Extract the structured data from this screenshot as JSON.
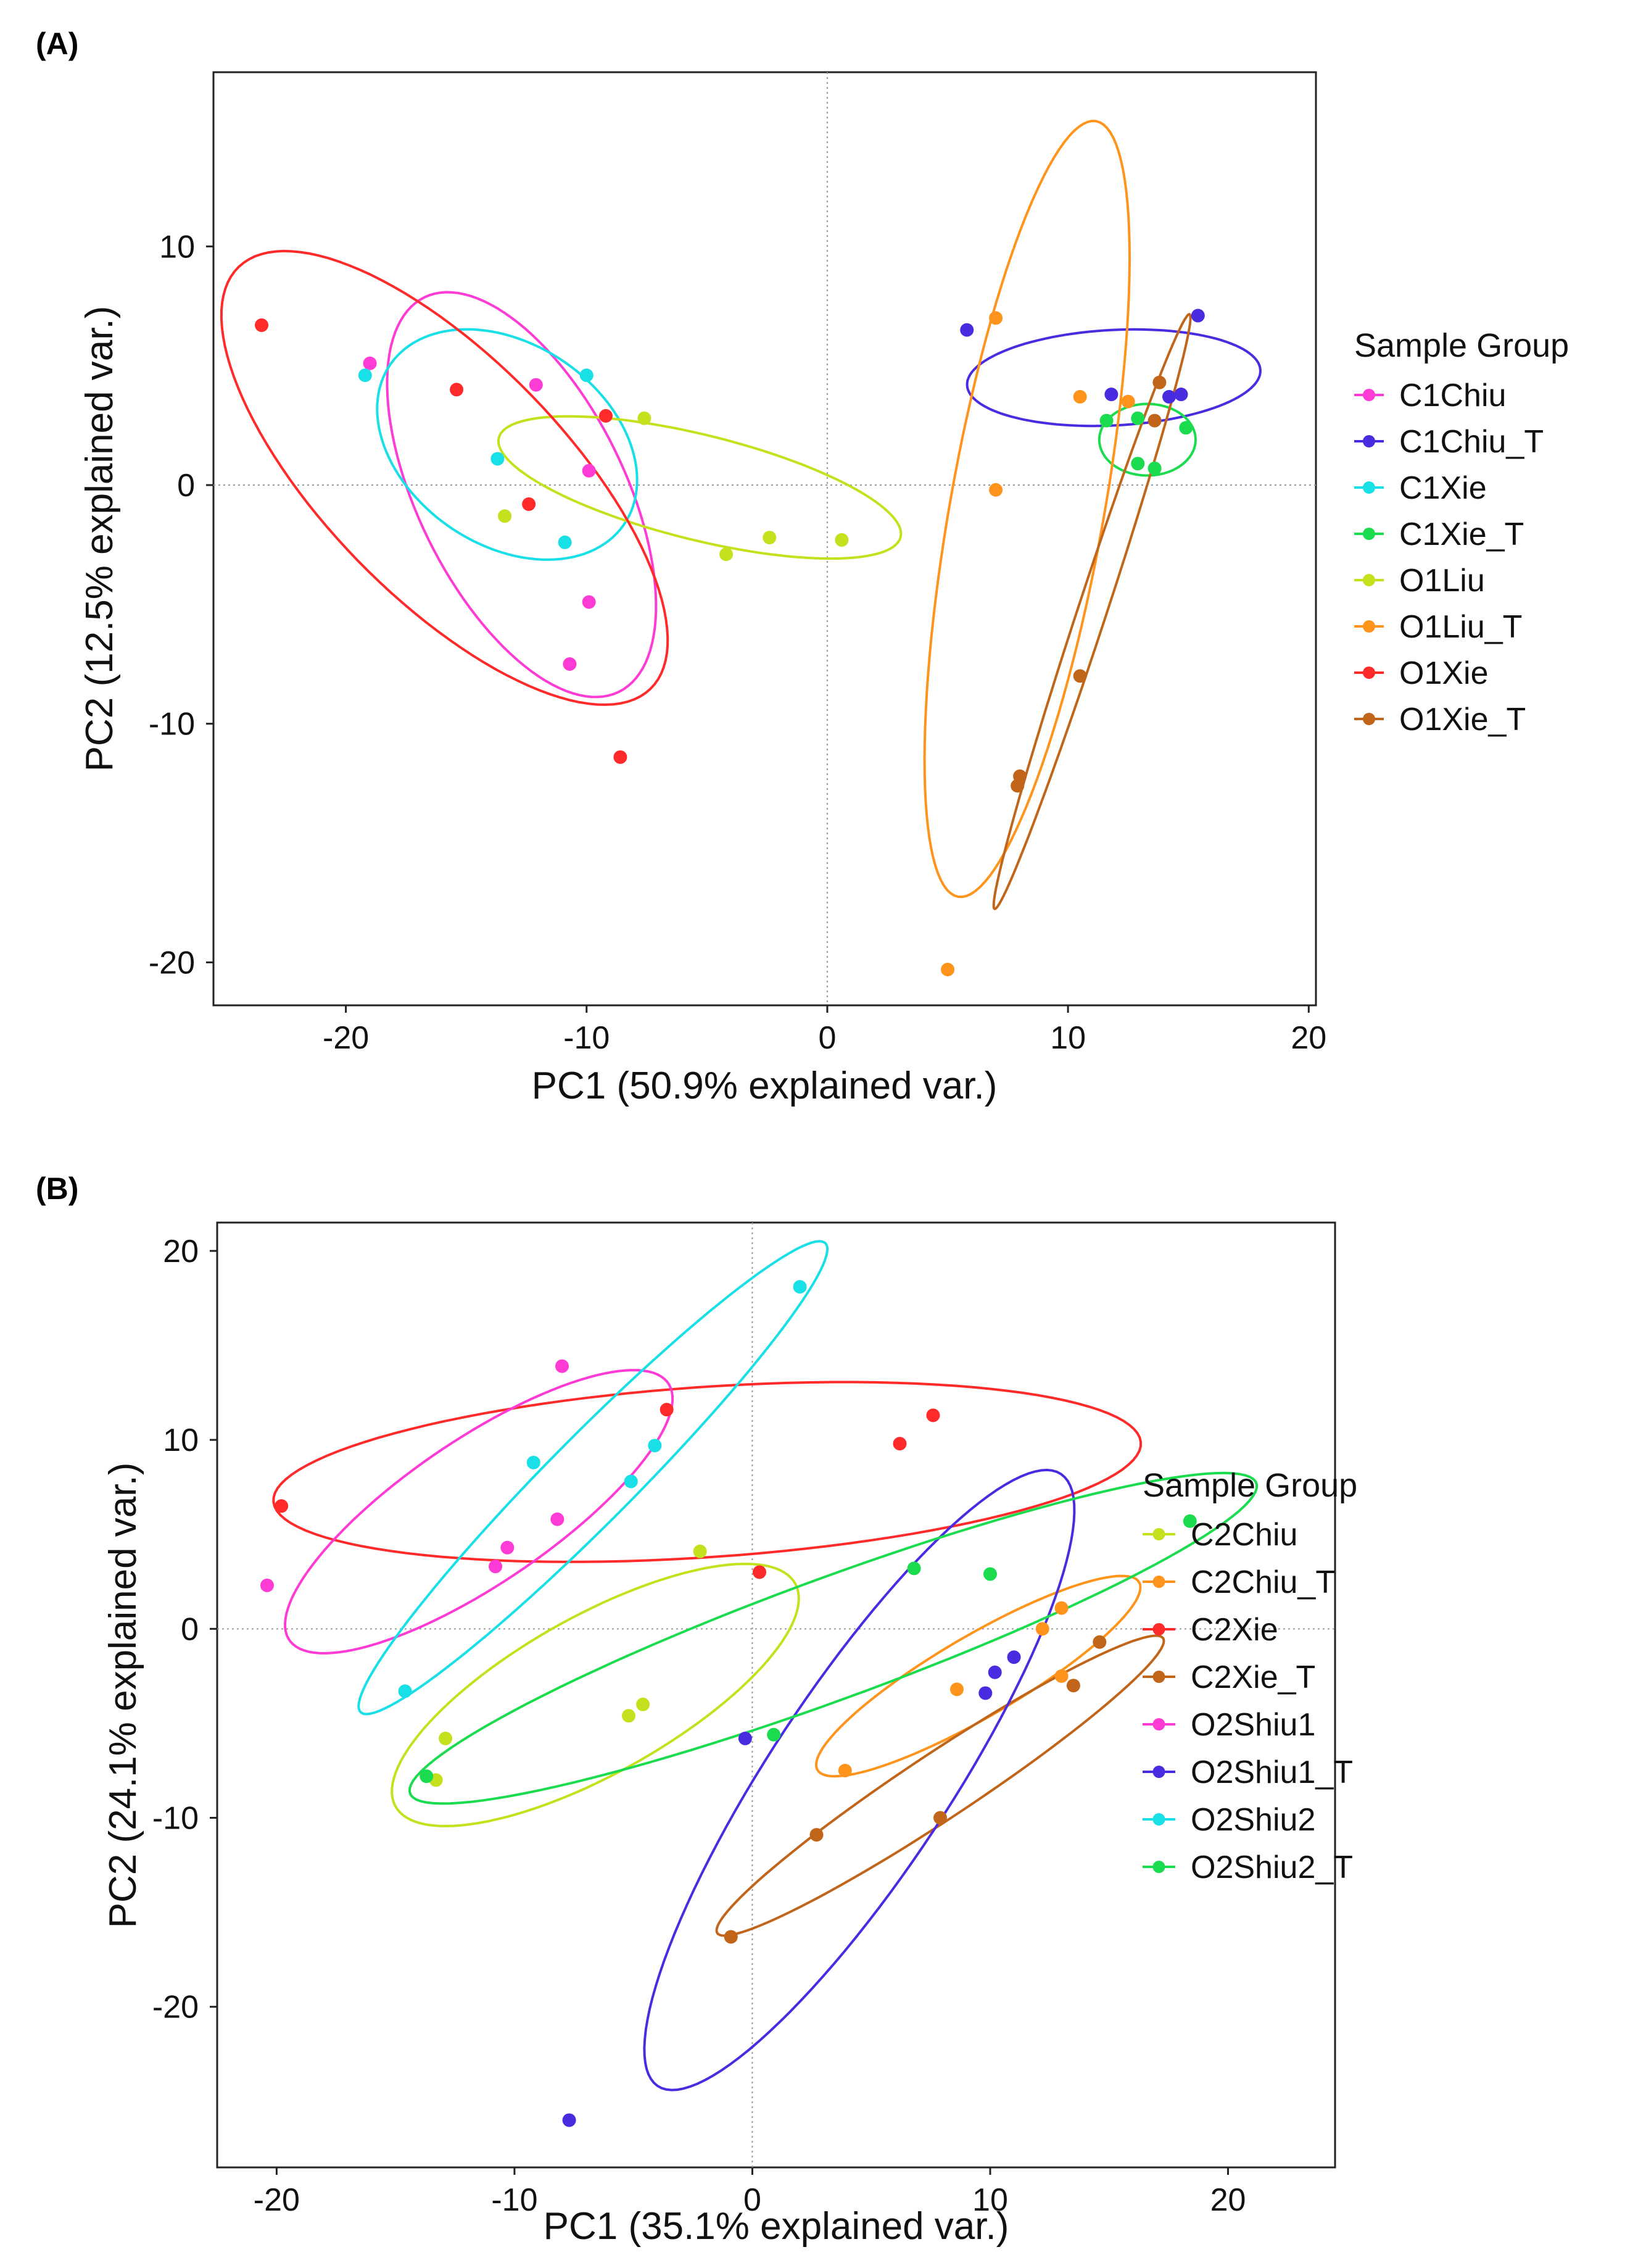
{
  "chart_data": [
    {
      "panel_label": "(A)",
      "type": "scatter",
      "xlabel": "PC1 (50.9% explained var.)",
      "ylabel": "PC2 (12.5% explained var.)",
      "xlim": [
        -25.5,
        20.3
      ],
      "ylim": [
        -21.8,
        17.3
      ],
      "xticks": [
        -20,
        -10,
        0,
        10,
        20
      ],
      "yticks": [
        10,
        0,
        -10,
        -20
      ],
      "x_tick_labels": [
        "-20",
        "-10",
        "0",
        "10",
        "20"
      ],
      "y_tick_labels": [
        "10",
        "0",
        "-10",
        "-20"
      ],
      "reference_lines": {
        "x": 0,
        "y": 0,
        "style": "dotted"
      },
      "grid": false,
      "legend": {
        "title": "Sample Group",
        "placement": "right"
      },
      "series": [
        {
          "name": "C1Chiu",
          "color": "#ff3bd6",
          "points": [
            [
              -19.0,
              5.1
            ],
            [
              -12.1,
              4.2
            ],
            [
              -9.9,
              0.6
            ],
            [
              -9.9,
              -4.9
            ],
            [
              -10.7,
              -7.5
            ]
          ],
          "ellipse": {
            "center": [
              -12.7,
              -0.4
            ],
            "semi_major": 9.2,
            "semi_minor": 4.3,
            "angle": -64
          }
        },
        {
          "name": "C1Chiu_T",
          "color": "#4a2ce0",
          "points": [
            [
              5.8,
              6.5
            ],
            [
              11.8,
              3.8
            ],
            [
              14.2,
              3.7
            ],
            [
              14.7,
              3.8
            ],
            [
              15.4,
              7.1
            ]
          ],
          "ellipse": {
            "center": [
              11.9,
              4.5
            ],
            "semi_major": 6.1,
            "semi_minor": 2.0,
            "angle": 3
          }
        },
        {
          "name": "C1Xie",
          "color": "#18e0e6",
          "points": [
            [
              -19.2,
              4.6
            ],
            [
              -10.0,
              4.6
            ],
            [
              -13.7,
              1.1
            ],
            [
              -10.9,
              -2.4
            ]
          ],
          "ellipse": {
            "center": [
              -13.3,
              1.7
            ],
            "semi_major": 5.9,
            "semi_minor": 4.2,
            "angle": -35
          }
        },
        {
          "name": "C1Xie_T",
          "color": "#1bdc4f",
          "points": [
            [
              11.6,
              2.7
            ],
            [
              12.9,
              2.8
            ],
            [
              14.9,
              2.4
            ],
            [
              12.9,
              0.9
            ],
            [
              13.6,
              0.7
            ]
          ],
          "ellipse": {
            "center": [
              13.3,
              1.9
            ],
            "semi_major": 2.0,
            "semi_minor": 1.5,
            "angle": 0
          }
        },
        {
          "name": "O1Liu",
          "color": "#c5e01c",
          "points": [
            [
              -7.6,
              2.8
            ],
            [
              -13.4,
              -1.3
            ],
            [
              -4.2,
              -2.9
            ],
            [
              -2.4,
              -2.2
            ],
            [
              0.6,
              -2.3
            ]
          ],
          "ellipse": {
            "center": [
              -5.3,
              -0.1
            ],
            "semi_major": 8.6,
            "semi_minor": 2.2,
            "angle": -14
          }
        },
        {
          "name": "O1Liu_T",
          "color": "#ff941c",
          "points": [
            [
              7.0,
              7.0
            ],
            [
              10.5,
              3.7
            ],
            [
              12.5,
              3.5
            ],
            [
              7.0,
              -0.2
            ],
            [
              5.0,
              -20.3
            ]
          ],
          "ellipse": {
            "center": [
              8.3,
              -1.0
            ],
            "semi_major": 16.5,
            "semi_minor": 3.2,
            "angle": 80
          }
        },
        {
          "name": "O1Xie",
          "color": "#ff2a2a",
          "points": [
            [
              -23.5,
              6.7
            ],
            [
              -15.4,
              4.0
            ],
            [
              -9.2,
              2.9
            ],
            [
              -12.4,
              -0.8
            ],
            [
              -8.6,
              -11.4
            ]
          ],
          "ellipse": {
            "center": [
              -15.9,
              0.3
            ],
            "semi_major": 12.3,
            "semi_minor": 5.0,
            "angle": -46
          }
        },
        {
          "name": "O1Xie_T",
          "color": "#c0651a",
          "points": [
            [
              13.8,
              4.3
            ],
            [
              13.6,
              2.7
            ],
            [
              10.5,
              -8.0
            ],
            [
              8.0,
              -12.2
            ],
            [
              7.9,
              -12.6
            ]
          ],
          "ellipse": {
            "center": [
              11.0,
              -5.3
            ],
            "semi_major": 13.1,
            "semi_minor": 0.6,
            "angle": 72
          }
        }
      ]
    },
    {
      "panel_label": "(B)",
      "type": "scatter",
      "xlabel": "PC1 (35.1% explained var.)",
      "ylabel": "PC2 (24.1% explained var.)",
      "xlim": [
        -22.5,
        24.5
      ],
      "ylim": [
        -28.5,
        21.5
      ],
      "xticks": [
        -20,
        -10,
        0,
        10,
        20
      ],
      "yticks": [
        20,
        10,
        0,
        -10,
        -20
      ],
      "x_tick_labels": [
        "-20",
        "-10",
        "0",
        "10",
        "20"
      ],
      "y_tick_labels": [
        "20",
        "10",
        "0",
        "-10",
        "-20"
      ],
      "reference_lines": {
        "x": 0,
        "y": 0,
        "style": "dotted"
      },
      "grid": false,
      "legend": {
        "title": "Sample Group",
        "placement": "right"
      },
      "series": [
        {
          "name": "C2Chiu",
          "color": "#c5e01c",
          "points": [
            [
              -2.2,
              4.1
            ],
            [
              -4.6,
              -4.0
            ],
            [
              -5.2,
              -4.6
            ],
            [
              -12.9,
              -5.8
            ],
            [
              -13.3,
              -8.0
            ]
          ],
          "ellipse": {
            "center": [
              -6.6,
              -3.5
            ],
            "semi_major": 10.3,
            "semi_minor": 3.9,
            "angle": 37
          }
        },
        {
          "name": "C2Chiu_T",
          "color": "#ff941c",
          "points": [
            [
              13.0,
              1.1
            ],
            [
              12.2,
              0.0
            ],
            [
              8.6,
              -3.2
            ],
            [
              13.0,
              -2.5
            ],
            [
              3.9,
              -7.5
            ]
          ],
          "ellipse": {
            "center": [
              9.5,
              -2.5
            ],
            "semi_major": 8.4,
            "semi_minor": 2.0,
            "angle": 37
          }
        },
        {
          "name": "C2Xie",
          "color": "#ff2a2a",
          "points": [
            [
              -19.8,
              6.5
            ],
            [
              -3.6,
              11.6
            ],
            [
              6.2,
              9.8
            ],
            [
              7.6,
              11.3
            ],
            [
              0.3,
              3.0
            ]
          ],
          "ellipse": {
            "center": [
              -1.9,
              8.3
            ],
            "semi_major": 18.3,
            "semi_minor": 4.5,
            "angle": 5
          }
        },
        {
          "name": "C2Xie_T",
          "color": "#c0651a",
          "points": [
            [
              14.6,
              -0.7
            ],
            [
              13.5,
              -3.0
            ],
            [
              7.9,
              -10.0
            ],
            [
              2.7,
              -10.9
            ],
            [
              -0.9,
              -16.3
            ]
          ],
          "ellipse": {
            "center": [
              7.9,
              -8.3
            ],
            "semi_major": 12.2,
            "semi_minor": 1.6,
            "angle": 40
          }
        },
        {
          "name": "O2Shiu1",
          "color": "#ff3bd6",
          "points": [
            [
              -8.0,
              13.9
            ],
            [
              -8.2,
              5.8
            ],
            [
              -10.3,
              4.3
            ],
            [
              -10.8,
              3.3
            ],
            [
              -20.4,
              2.3
            ]
          ],
          "ellipse": {
            "center": [
              -11.5,
              6.2
            ],
            "semi_major": 10.5,
            "semi_minor": 3.5,
            "angle": 42
          }
        },
        {
          "name": "O2Shiu1_T",
          "color": "#4a2ce0",
          "points": [
            [
              11.0,
              -1.5
            ],
            [
              10.2,
              -2.3
            ],
            [
              9.8,
              -3.4
            ],
            [
              -0.3,
              -5.8
            ],
            [
              -7.7,
              -26.0
            ]
          ],
          "ellipse": {
            "center": [
              4.5,
              -8.0
            ],
            "semi_major": 18.3,
            "semi_minor": 4.0,
            "angle": 63
          }
        },
        {
          "name": "O2Shiu2",
          "color": "#18e0e6",
          "points": [
            [
              2.0,
              18.1
            ],
            [
              -9.2,
              8.8
            ],
            [
              -4.1,
              9.7
            ],
            [
              -5.1,
              7.8
            ],
            [
              -14.6,
              -3.3
            ]
          ],
          "ellipse": {
            "center": [
              -6.7,
              8.0
            ],
            "semi_major": 15.8,
            "semi_minor": 2.0,
            "angle": 52
          }
        },
        {
          "name": "O2Shiu2_T",
          "color": "#1bdc4f",
          "points": [
            [
              18.4,
              5.7
            ],
            [
              6.8,
              3.2
            ],
            [
              10.0,
              2.9
            ],
            [
              0.9,
              -5.6
            ],
            [
              -13.7,
              -7.8
            ]
          ],
          "ellipse": {
            "center": [
              3.4,
              -0.5
            ],
            "semi_major": 19.6,
            "semi_minor": 3.1,
            "angle": 25
          }
        }
      ]
    }
  ]
}
